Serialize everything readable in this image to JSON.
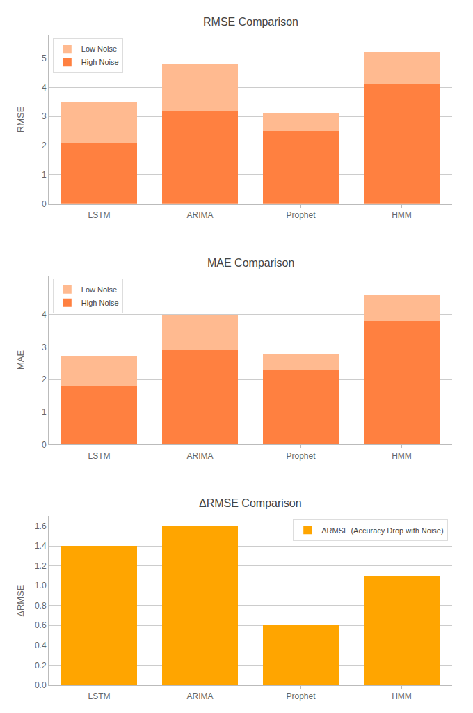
{
  "chart_data": [
    {
      "type": "bar",
      "title": "RMSE Comparison",
      "ylabel": "RMSE",
      "categories": [
        "LSTM",
        "ARIMA",
        "Prophet",
        "HMM"
      ],
      "series": [
        {
          "name": "High Noise",
          "color": "#FF8040",
          "values": [
            2.1,
            3.2,
            2.5,
            4.1
          ]
        },
        {
          "name": "Low Noise",
          "color": "#FFBA90",
          "values": [
            1.4,
            1.6,
            0.6,
            1.1
          ]
        }
      ],
      "stacked": true,
      "ylim": [
        0,
        5.8
      ],
      "yticks": [
        0,
        1,
        2,
        3,
        4,
        5
      ],
      "grid": true,
      "legend": "upper left"
    },
    {
      "type": "bar",
      "title": "MAE Comparison",
      "ylabel": "MAE",
      "categories": [
        "LSTM",
        "ARIMA",
        "Prophet",
        "HMM"
      ],
      "series": [
        {
          "name": "High Noise",
          "color": "#FF8040",
          "values": [
            1.8,
            2.9,
            2.3,
            3.8
          ]
        },
        {
          "name": "Low Noise",
          "color": "#FFBA90",
          "values": [
            0.9,
            1.1,
            0.5,
            0.8
          ]
        }
      ],
      "stacked": true,
      "ylim": [
        0,
        5.2
      ],
      "yticks": [
        0,
        1,
        2,
        3,
        4
      ],
      "grid": true,
      "legend": "upper left"
    },
    {
      "type": "bar",
      "title": "ΔRMSE Comparison",
      "ylabel": "ΔRMSE",
      "categories": [
        "LSTM",
        "ARIMA",
        "Prophet",
        "HMM"
      ],
      "series": [
        {
          "name": "ΔRMSE (Accuracy Drop with Noise)",
          "color": "#FFA500",
          "values": [
            1.4,
            1.6,
            0.6,
            1.1
          ]
        }
      ],
      "ylim": [
        0,
        1.7
      ],
      "yticks": [
        {
          "value": 0,
          "label": "0.0"
        },
        0.2,
        0.4,
        0.6,
        0.8,
        {
          "value": 1,
          "label": "1.0"
        },
        1.2,
        1.4,
        1.6
      ],
      "grid": true,
      "legend": "upper right"
    }
  ]
}
